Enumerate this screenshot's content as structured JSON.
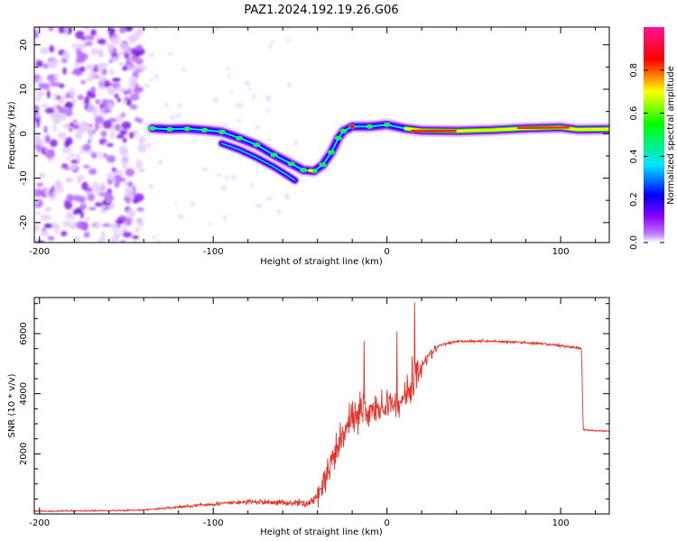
{
  "title": "PAZ1.2024.192.19.26.G06",
  "chart_data": [
    {
      "type": "heatmap",
      "xlabel": "Height of straight line (km)",
      "ylabel": "Frequency (Hz)",
      "xlim": [
        -203,
        128
      ],
      "ylim": [
        -24.5,
        24
      ],
      "xticks": [
        -200,
        -100,
        0,
        100
      ],
      "yticks": [
        -20,
        -10,
        0,
        10,
        20
      ],
      "colorbar": {
        "label": "Normalized spectral amplitude",
        "range": [
          0,
          1
        ],
        "ticks": [
          "0.0",
          "0.2",
          "0.4",
          "0.6",
          "0.8"
        ],
        "colormap": [
          "#ffffff",
          "#8a00ff",
          "#0000ff",
          "#00e5ff",
          "#00ff00",
          "#ffff00",
          "#ff0000",
          "#ff1493"
        ]
      },
      "noise_region_x": [
        -203,
        -140
      ],
      "ridge": [
        [
          -135,
          1.2
        ],
        [
          -125,
          1.0
        ],
        [
          -115,
          1.1
        ],
        [
          -105,
          0.8
        ],
        [
          -95,
          0.4
        ],
        [
          -85,
          -1.0
        ],
        [
          -75,
          -2.5
        ],
        [
          -65,
          -4.8
        ],
        [
          -55,
          -6.8
        ],
        [
          -48,
          -8.2
        ],
        [
          -42,
          -8.4
        ],
        [
          -37,
          -7.0
        ],
        [
          -32,
          -4.2
        ],
        [
          -28,
          -1.0
        ],
        [
          -25,
          0.6
        ],
        [
          -20,
          1.6
        ],
        [
          -10,
          1.6
        ],
        [
          0,
          2.0
        ],
        [
          10,
          1.2
        ],
        [
          20,
          0.7
        ],
        [
          40,
          0.6
        ],
        [
          60,
          0.8
        ],
        [
          80,
          1.2
        ],
        [
          100,
          1.4
        ],
        [
          110,
          0.9
        ],
        [
          128,
          1.0
        ]
      ],
      "branch": [
        [
          -95,
          -2.2
        ],
        [
          -85,
          -3.6
        ],
        [
          -75,
          -5.4
        ],
        [
          -65,
          -7.5
        ],
        [
          -58,
          -9.2
        ],
        [
          -53,
          -10.5
        ]
      ]
    },
    {
      "type": "line",
      "xlabel": "Height of straight line (km)",
      "ylabel": "SNR (10 * v/v)",
      "xlim": [
        -203,
        128
      ],
      "ylim": [
        0,
        7200
      ],
      "xticks": [
        -200,
        -100,
        0,
        100
      ],
      "yticks": [
        2000,
        4000,
        6000
      ],
      "color": "#e8322c",
      "series": [
        {
          "x": [
            -203,
            -180,
            -160,
            -140,
            -120,
            -100,
            -80,
            -60,
            -45,
            -40,
            -35,
            -30,
            -25,
            -20,
            -15,
            -10,
            -5,
            0,
            5,
            10,
            15,
            20,
            30,
            40,
            60,
            80,
            100,
            112,
            113,
            128
          ],
          "y": [
            90,
            100,
            110,
            130,
            230,
            330,
            400,
            380,
            350,
            600,
            1200,
            1900,
            2600,
            3200,
            3500,
            3400,
            3500,
            3600,
            3700,
            3900,
            4300,
            5000,
            5600,
            5750,
            5750,
            5700,
            5600,
            5500,
            2800,
            2750
          ]
        }
      ]
    }
  ]
}
